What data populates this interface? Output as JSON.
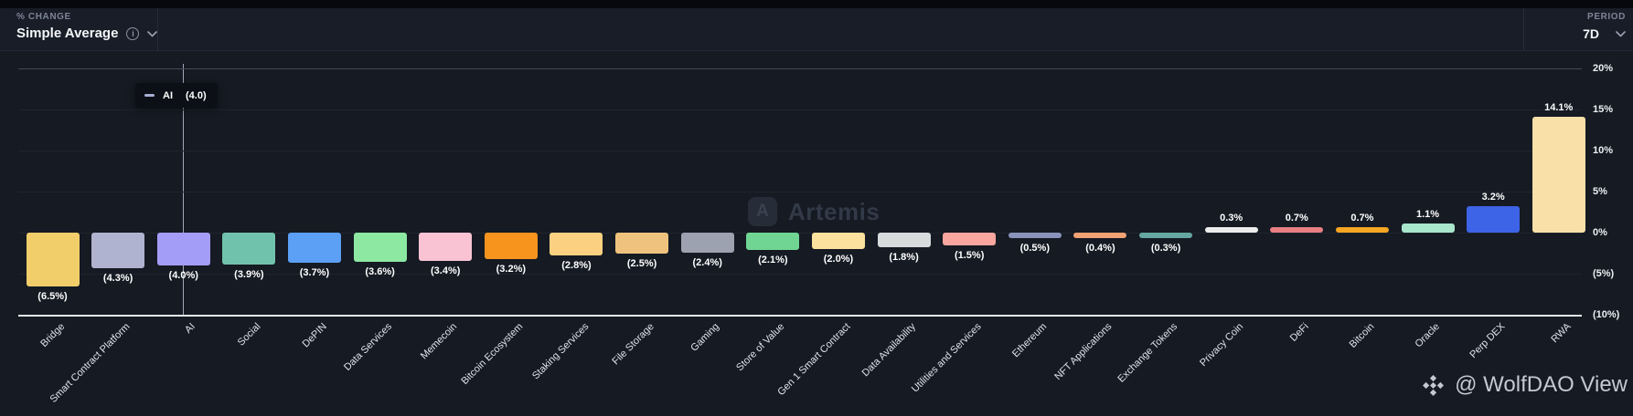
{
  "header": {
    "metric_label": "% CHANGE",
    "metric_value": "Simple Average",
    "period_label": "PERIOD",
    "period_value": "7D"
  },
  "tooltip": {
    "category": "AI",
    "value_text": "(4.0)"
  },
  "watermark": {
    "artemis_logo_letter": "A",
    "artemis": "Artemis",
    "credit": "@ WolfDAO View"
  },
  "chart_data": {
    "type": "bar",
    "metric": "% Change - Simple Average",
    "period": "7D",
    "grid": true,
    "legend": "none",
    "ylim": [
      -10,
      20
    ],
    "y_tick_values": [
      20,
      15,
      10,
      5,
      0,
      -5,
      -10
    ],
    "y_ticks": [
      "20%",
      "15%",
      "10%",
      "5%",
      "0%",
      "(5%)",
      "(10%)"
    ],
    "categories": [
      "Bridge",
      "Smart Contract Platform",
      "AI",
      "Social",
      "DePIN",
      "Data Services",
      "Memecoin",
      "Bitcoin Ecosystem",
      "Staking Services",
      "File Storage",
      "Gaming",
      "Store of Value",
      "Gen 1 Smart Contract",
      "Data Availability",
      "Utilities and Services",
      "Ethereum",
      "NFT Applications",
      "Exchange Tokens",
      "Privacy Coin",
      "DeFi",
      "Bitcoin",
      "Oracle",
      "Perp DEX",
      "RWA"
    ],
    "values": [
      -6.5,
      -4.3,
      -4.0,
      -3.9,
      -3.7,
      -3.6,
      -3.4,
      -3.2,
      -2.8,
      -2.5,
      -2.4,
      -2.1,
      -2.0,
      -1.8,
      -1.5,
      -0.5,
      -0.4,
      -0.3,
      0.3,
      0.7,
      0.7,
      1.1,
      3.2,
      14.1
    ],
    "value_labels": [
      "(6.5%)",
      "(4.3%)",
      "(4.0%)",
      "(3.9%)",
      "(3.7%)",
      "(3.6%)",
      "(3.4%)",
      "(3.2%)",
      "(2.8%)",
      "(2.5%)",
      "(2.4%)",
      "(2.1%)",
      "(2.0%)",
      "(1.8%)",
      "(1.5%)",
      "(0.5%)",
      "(0.4%)",
      "(0.3%)",
      "0.3%",
      "0.7%",
      "0.7%",
      "1.1%",
      "3.2%",
      "14.1%"
    ],
    "colors": [
      "#f2ce6b",
      "#b0b3cf",
      "#a49df8",
      "#71c2ac",
      "#5ca0f5",
      "#8de8a2",
      "#fac3d3",
      "#f7941e",
      "#fbd181",
      "#efc37e",
      "#9ca2b0",
      "#70d593",
      "#fbe19d",
      "#d8dbdc",
      "#f9a69f",
      "#8a93bc",
      "#f2a273",
      "#64a8a1",
      "#ececec",
      "#e87f83",
      "#f5a623",
      "#a9e6cc",
      "#3d63e6",
      "#f9e0a8"
    ],
    "highlighted_category": "AI",
    "highlighted_value": -4.0
  }
}
